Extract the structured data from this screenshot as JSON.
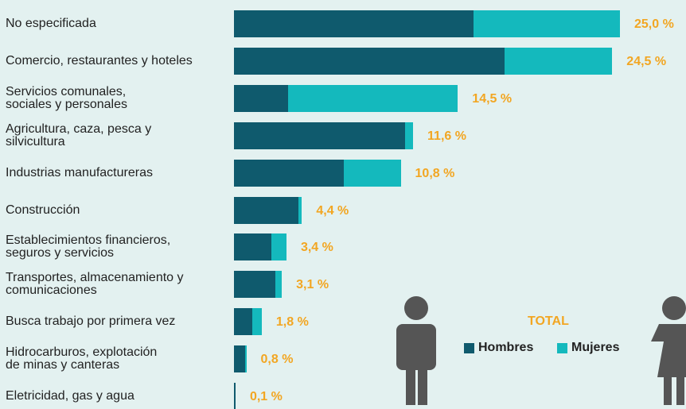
{
  "chart_data": {
    "type": "stacked-barh",
    "categories": [
      "No especificada",
      "Comercio, restaurantes y hoteles",
      "Servicios comunales,\nsociales y personales",
      "Agricultura, caza, pesca y\nsilvicultura",
      "Industrias manufactureras",
      "Construcción",
      "Establecimientos financieros,\nseguros y servicios",
      "Transportes, almacenamiento y\ncomunicaciones",
      "Busca trabajo por primera vez",
      "Hidrocarburos, explotación\nde minas y canteras",
      "Eletricidad, gas y agua"
    ],
    "series": [
      {
        "name": "Hombres",
        "color": "#0f5a6d",
        "values": [
          15.5,
          17.5,
          3.5,
          11.1,
          7.1,
          4.2,
          2.4,
          2.7,
          1.2,
          0.7,
          0.1
        ]
      },
      {
        "name": "Mujeres",
        "color": "#14b9bd",
        "values": [
          9.5,
          7.0,
          11.0,
          0.5,
          3.7,
          0.2,
          1.0,
          0.4,
          0.6,
          0.1,
          0.0
        ]
      }
    ],
    "totals": [
      25.0,
      24.5,
      14.5,
      11.6,
      10.8,
      4.4,
      3.4,
      3.1,
      1.8,
      0.8,
      0.1
    ],
    "total_labels": [
      "25,0 %",
      "24,5 %",
      "14,5 %",
      "11,6 %",
      "10,8 %",
      "4,4 %",
      "3,4 %",
      "3,1 %",
      "1,8 %",
      "0,8 %",
      "0,1 %"
    ],
    "legend_title": "TOTAL",
    "xlim": [
      0,
      25
    ]
  }
}
